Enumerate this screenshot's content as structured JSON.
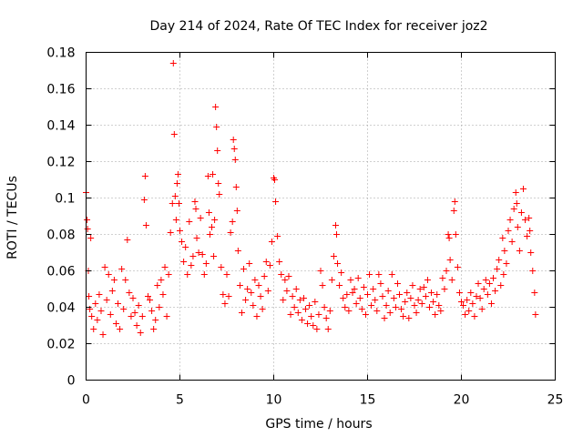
{
  "chart_data": {
    "type": "scatter",
    "title": "Day 214 of 2024, Rate Of TEC Index for receiver joz2",
    "xlabel": "GPS time / hours",
    "ylabel": "ROTI / TECUs",
    "xlim": [
      0,
      25
    ],
    "ylim": [
      0,
      0.18
    ],
    "xticks": [
      0,
      5,
      10,
      15,
      20,
      25
    ],
    "xtick_labels": [
      "0",
      "5",
      "10",
      "15",
      "20",
      "25"
    ],
    "yticks": [
      0,
      0.02,
      0.04,
      0.06,
      0.08,
      0.1,
      0.12,
      0.14,
      0.16,
      0.18
    ],
    "ytick_labels": [
      "0",
      "0.02",
      "0.04",
      "0.06",
      "0.08",
      "0.1",
      "0.12",
      "0.14",
      "0.16",
      "0.18"
    ],
    "grid": true,
    "marker": "+",
    "color": "#ff0000",
    "series": [
      {
        "name": "ROTI",
        "points": [
          [
            0.0,
            0.103
          ],
          [
            0.05,
            0.088
          ],
          [
            0.08,
            0.083
          ],
          [
            0.12,
            0.06
          ],
          [
            0.15,
            0.046
          ],
          [
            0.2,
            0.039
          ],
          [
            0.25,
            0.078
          ],
          [
            0.3,
            0.035
          ],
          [
            0.4,
            0.028
          ],
          [
            0.5,
            0.042
          ],
          [
            0.6,
            0.033
          ],
          [
            0.7,
            0.047
          ],
          [
            0.8,
            0.038
          ],
          [
            0.9,
            0.025
          ],
          [
            1.0,
            0.062
          ],
          [
            1.1,
            0.044
          ],
          [
            1.2,
            0.058
          ],
          [
            1.3,
            0.036
          ],
          [
            1.4,
            0.049
          ],
          [
            1.5,
            0.055
          ],
          [
            1.6,
            0.031
          ],
          [
            1.7,
            0.042
          ],
          [
            1.8,
            0.028
          ],
          [
            1.9,
            0.061
          ],
          [
            2.0,
            0.039
          ],
          [
            2.1,
            0.055
          ],
          [
            2.2,
            0.077
          ],
          [
            2.3,
            0.048
          ],
          [
            2.4,
            0.035
          ],
          [
            2.5,
            0.045
          ],
          [
            2.6,
            0.037
          ],
          [
            2.7,
            0.03
          ],
          [
            2.8,
            0.041
          ],
          [
            2.9,
            0.026
          ],
          [
            3.0,
            0.035
          ],
          [
            3.1,
            0.099
          ],
          [
            3.15,
            0.112
          ],
          [
            3.2,
            0.085
          ],
          [
            3.3,
            0.046
          ],
          [
            3.4,
            0.044
          ],
          [
            3.5,
            0.038
          ],
          [
            3.6,
            0.028
          ],
          [
            3.7,
            0.033
          ],
          [
            3.8,
            0.052
          ],
          [
            3.9,
            0.04
          ],
          [
            4.0,
            0.055
          ],
          [
            4.1,
            0.047
          ],
          [
            4.2,
            0.062
          ],
          [
            4.3,
            0.035
          ],
          [
            4.4,
            0.058
          ],
          [
            4.5,
            0.081
          ],
          [
            4.6,
            0.097
          ],
          [
            4.65,
            0.174
          ],
          [
            4.7,
            0.135
          ],
          [
            4.75,
            0.101
          ],
          [
            4.8,
            0.088
          ],
          [
            4.85,
            0.108
          ],
          [
            4.9,
            0.113
          ],
          [
            4.95,
            0.097
          ],
          [
            5.0,
            0.082
          ],
          [
            5.1,
            0.076
          ],
          [
            5.2,
            0.065
          ],
          [
            5.3,
            0.073
          ],
          [
            5.4,
            0.058
          ],
          [
            5.5,
            0.087
          ],
          [
            5.6,
            0.063
          ],
          [
            5.7,
            0.068
          ],
          [
            5.8,
            0.098
          ],
          [
            5.85,
            0.094
          ],
          [
            5.9,
            0.078
          ],
          [
            6.0,
            0.07
          ],
          [
            6.1,
            0.089
          ],
          [
            6.2,
            0.069
          ],
          [
            6.3,
            0.058
          ],
          [
            6.4,
            0.064
          ],
          [
            6.5,
            0.112
          ],
          [
            6.55,
            0.092
          ],
          [
            6.6,
            0.08
          ],
          [
            6.7,
            0.084
          ],
          [
            6.75,
            0.113
          ],
          [
            6.8,
            0.068
          ],
          [
            6.85,
            0.088
          ],
          [
            6.9,
            0.15
          ],
          [
            6.95,
            0.139
          ],
          [
            7.0,
            0.126
          ],
          [
            7.05,
            0.108
          ],
          [
            7.1,
            0.102
          ],
          [
            7.2,
            0.062
          ],
          [
            7.3,
            0.047
          ],
          [
            7.4,
            0.042
          ],
          [
            7.5,
            0.058
          ],
          [
            7.6,
            0.046
          ],
          [
            7.7,
            0.081
          ],
          [
            7.8,
            0.087
          ],
          [
            7.85,
            0.132
          ],
          [
            7.9,
            0.127
          ],
          [
            7.95,
            0.121
          ],
          [
            8.0,
            0.106
          ],
          [
            8.05,
            0.093
          ],
          [
            8.1,
            0.071
          ],
          [
            8.2,
            0.052
          ],
          [
            8.3,
            0.037
          ],
          [
            8.4,
            0.061
          ],
          [
            8.5,
            0.044
          ],
          [
            8.6,
            0.05
          ],
          [
            8.7,
            0.064
          ],
          [
            8.8,
            0.048
          ],
          [
            8.9,
            0.041
          ],
          [
            9.0,
            0.055
          ],
          [
            9.1,
            0.035
          ],
          [
            9.2,
            0.052
          ],
          [
            9.3,
            0.046
          ],
          [
            9.4,
            0.039
          ],
          [
            9.5,
            0.057
          ],
          [
            9.6,
            0.065
          ],
          [
            9.7,
            0.049
          ],
          [
            9.8,
            0.063
          ],
          [
            9.9,
            0.076
          ],
          [
            10.0,
            0.111
          ],
          [
            10.05,
            0.11
          ],
          [
            10.1,
            0.098
          ],
          [
            10.2,
            0.079
          ],
          [
            10.3,
            0.065
          ],
          [
            10.4,
            0.058
          ],
          [
            10.5,
            0.044
          ],
          [
            10.6,
            0.055
          ],
          [
            10.7,
            0.049
          ],
          [
            10.8,
            0.057
          ],
          [
            10.9,
            0.036
          ],
          [
            11.0,
            0.046
          ],
          [
            11.1,
            0.04
          ],
          [
            11.2,
            0.05
          ],
          [
            11.3,
            0.037
          ],
          [
            11.4,
            0.044
          ],
          [
            11.5,
            0.033
          ],
          [
            11.6,
            0.045
          ],
          [
            11.7,
            0.039
          ],
          [
            11.8,
            0.031
          ],
          [
            11.9,
            0.041
          ],
          [
            12.0,
            0.035
          ],
          [
            12.1,
            0.03
          ],
          [
            12.2,
            0.043
          ],
          [
            12.3,
            0.028
          ],
          [
            12.4,
            0.036
          ],
          [
            12.5,
            0.06
          ],
          [
            12.6,
            0.052
          ],
          [
            12.7,
            0.04
          ],
          [
            12.8,
            0.034
          ],
          [
            12.9,
            0.028
          ],
          [
            13.0,
            0.038
          ],
          [
            13.1,
            0.055
          ],
          [
            13.2,
            0.068
          ],
          [
            13.3,
            0.085
          ],
          [
            13.35,
            0.08
          ],
          [
            13.4,
            0.064
          ],
          [
            13.5,
            0.052
          ],
          [
            13.6,
            0.059
          ],
          [
            13.7,
            0.045
          ],
          [
            13.8,
            0.04
          ],
          [
            13.9,
            0.047
          ],
          [
            14.0,
            0.038
          ],
          [
            14.1,
            0.055
          ],
          [
            14.2,
            0.048
          ],
          [
            14.3,
            0.05
          ],
          [
            14.4,
            0.042
          ],
          [
            14.5,
            0.056
          ],
          [
            14.6,
            0.045
          ],
          [
            14.7,
            0.039
          ],
          [
            14.8,
            0.051
          ],
          [
            14.9,
            0.036
          ],
          [
            15.0,
            0.047
          ],
          [
            15.1,
            0.058
          ],
          [
            15.2,
            0.041
          ],
          [
            15.3,
            0.05
          ],
          [
            15.4,
            0.044
          ],
          [
            15.5,
            0.038
          ],
          [
            15.6,
            0.058
          ],
          [
            15.7,
            0.053
          ],
          [
            15.8,
            0.046
          ],
          [
            15.9,
            0.034
          ],
          [
            16.0,
            0.041
          ],
          [
            16.1,
            0.049
          ],
          [
            16.2,
            0.037
          ],
          [
            16.3,
            0.058
          ],
          [
            16.4,
            0.045
          ],
          [
            16.5,
            0.04
          ],
          [
            16.6,
            0.053
          ],
          [
            16.7,
            0.047
          ],
          [
            16.8,
            0.039
          ],
          [
            16.9,
            0.035
          ],
          [
            17.0,
            0.043
          ],
          [
            17.1,
            0.048
          ],
          [
            17.2,
            0.034
          ],
          [
            17.3,
            0.045
          ],
          [
            17.4,
            0.052
          ],
          [
            17.5,
            0.041
          ],
          [
            17.6,
            0.037
          ],
          [
            17.7,
            0.044
          ],
          [
            17.8,
            0.05
          ],
          [
            17.9,
            0.042
          ],
          [
            18.0,
            0.051
          ],
          [
            18.1,
            0.046
          ],
          [
            18.2,
            0.055
          ],
          [
            18.3,
            0.04
          ],
          [
            18.4,
            0.048
          ],
          [
            18.5,
            0.043
          ],
          [
            18.6,
            0.036
          ],
          [
            18.7,
            0.047
          ],
          [
            18.8,
            0.041
          ],
          [
            18.9,
            0.038
          ],
          [
            19.0,
            0.056
          ],
          [
            19.1,
            0.05
          ],
          [
            19.2,
            0.06
          ],
          [
            19.3,
            0.08
          ],
          [
            19.35,
            0.078
          ],
          [
            19.4,
            0.066
          ],
          [
            19.5,
            0.055
          ],
          [
            19.6,
            0.093
          ],
          [
            19.65,
            0.098
          ],
          [
            19.7,
            0.08
          ],
          [
            19.8,
            0.062
          ],
          [
            19.9,
            0.048
          ],
          [
            20.0,
            0.043
          ],
          [
            20.1,
            0.041
          ],
          [
            20.2,
            0.036
          ],
          [
            20.3,
            0.044
          ],
          [
            20.4,
            0.038
          ],
          [
            20.5,
            0.048
          ],
          [
            20.6,
            0.042
          ],
          [
            20.7,
            0.035
          ],
          [
            20.8,
            0.046
          ],
          [
            20.9,
            0.053
          ],
          [
            21.0,
            0.045
          ],
          [
            21.1,
            0.039
          ],
          [
            21.2,
            0.05
          ],
          [
            21.3,
            0.055
          ],
          [
            21.4,
            0.047
          ],
          [
            21.5,
            0.053
          ],
          [
            21.6,
            0.042
          ],
          [
            21.7,
            0.056
          ],
          [
            21.8,
            0.049
          ],
          [
            21.9,
            0.061
          ],
          [
            22.0,
            0.066
          ],
          [
            22.1,
            0.052
          ],
          [
            22.2,
            0.078
          ],
          [
            22.25,
            0.058
          ],
          [
            22.3,
            0.071
          ],
          [
            22.4,
            0.064
          ],
          [
            22.5,
            0.082
          ],
          [
            22.6,
            0.088
          ],
          [
            22.7,
            0.076
          ],
          [
            22.8,
            0.094
          ],
          [
            22.9,
            0.103
          ],
          [
            22.95,
            0.097
          ],
          [
            23.0,
            0.084
          ],
          [
            23.1,
            0.071
          ],
          [
            23.2,
            0.092
          ],
          [
            23.3,
            0.105
          ],
          [
            23.4,
            0.088
          ],
          [
            23.5,
            0.079
          ],
          [
            23.6,
            0.089
          ],
          [
            23.65,
            0.082
          ],
          [
            23.7,
            0.07
          ],
          [
            23.8,
            0.06
          ],
          [
            23.9,
            0.048
          ],
          [
            23.95,
            0.036
          ]
        ]
      }
    ]
  }
}
